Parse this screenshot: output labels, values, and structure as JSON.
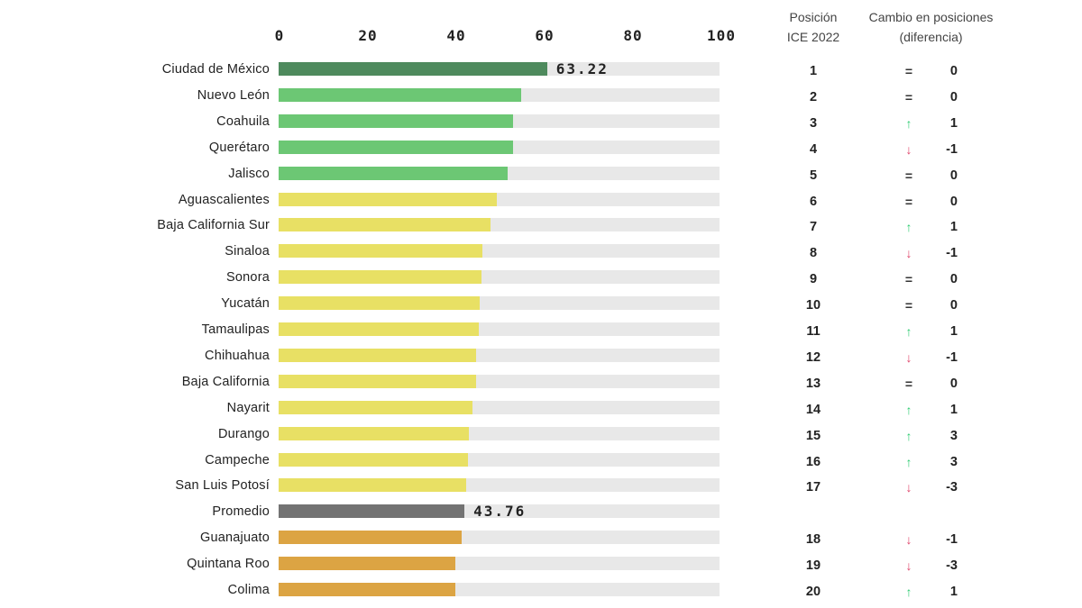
{
  "chart_data": {
    "type": "bar",
    "orientation": "horizontal",
    "xlim": [
      0,
      100
    ],
    "xticks": [
      "0",
      "20",
      "40",
      "60",
      "80",
      "100"
    ],
    "grid": false,
    "columns": {
      "position_header": [
        "Posición",
        "ICE 2022"
      ],
      "change_header": [
        "Cambio en posiciones",
        "(diferencia)"
      ]
    },
    "colors": {
      "top": "#4e8a5d",
      "high": "#6cc774",
      "mid": "#e8e064",
      "average": "#737373",
      "low": "#dca443",
      "track": "#e8e8e8",
      "up": "#2ecc71",
      "down": "#e0456a"
    },
    "rows": [
      {
        "label": "Ciudad de México",
        "value": 63.22,
        "value_label": "63.22",
        "color": "top",
        "position": "1",
        "arrow": "=",
        "change": "0"
      },
      {
        "label": "Nuevo León",
        "value": 57.1,
        "color": "high",
        "position": "2",
        "arrow": "=",
        "change": "0"
      },
      {
        "label": "Coahuila",
        "value": 55.2,
        "color": "high",
        "position": "3",
        "arrow": "up",
        "change": "1"
      },
      {
        "label": "Querétaro",
        "value": 55.1,
        "color": "high",
        "position": "4",
        "arrow": "down",
        "change": "-1"
      },
      {
        "label": "Jalisco",
        "value": 53.9,
        "color": "high",
        "position": "5",
        "arrow": "=",
        "change": "0"
      },
      {
        "label": "Aguascalientes",
        "value": 51.4,
        "color": "mid",
        "position": "6",
        "arrow": "=",
        "change": "0"
      },
      {
        "label": "Baja California Sur",
        "value": 49.9,
        "color": "mid",
        "position": "7",
        "arrow": "up",
        "change": "1"
      },
      {
        "label": "Sinaloa",
        "value": 48.0,
        "color": "mid",
        "position": "8",
        "arrow": "down",
        "change": "-1"
      },
      {
        "label": "Sonora",
        "value": 47.8,
        "color": "mid",
        "position": "9",
        "arrow": "=",
        "change": "0"
      },
      {
        "label": "Yucatán",
        "value": 47.3,
        "color": "mid",
        "position": "10",
        "arrow": "=",
        "change": "0"
      },
      {
        "label": "Tamaulipas",
        "value": 47.1,
        "color": "mid",
        "position": "11",
        "arrow": "up",
        "change": "1"
      },
      {
        "label": "Chihuahua",
        "value": 46.5,
        "color": "mid",
        "position": "12",
        "arrow": "down",
        "change": "-1"
      },
      {
        "label": "Baja California",
        "value": 46.5,
        "color": "mid",
        "position": "13",
        "arrow": "=",
        "change": "0"
      },
      {
        "label": "Nayarit",
        "value": 45.6,
        "color": "mid",
        "position": "14",
        "arrow": "up",
        "change": "1"
      },
      {
        "label": "Durango",
        "value": 44.9,
        "color": "mid",
        "position": "15",
        "arrow": "up",
        "change": "3"
      },
      {
        "label": "Campeche",
        "value": 44.6,
        "color": "mid",
        "position": "16",
        "arrow": "up",
        "change": "3"
      },
      {
        "label": "San Luis Potosí",
        "value": 44.2,
        "color": "mid",
        "position": "17",
        "arrow": "down",
        "change": "-3"
      },
      {
        "label": "Promedio",
        "value": 43.76,
        "value_label": "43.76",
        "color": "average",
        "position": "",
        "arrow": "",
        "change": ""
      },
      {
        "label": "Guanajuato",
        "value": 43.1,
        "color": "low",
        "position": "18",
        "arrow": "down",
        "change": "-1"
      },
      {
        "label": "Quintana Roo",
        "value": 41.6,
        "color": "low",
        "position": "19",
        "arrow": "down",
        "change": "-3"
      },
      {
        "label": "Colima",
        "value": 41.6,
        "color": "low",
        "position": "20",
        "arrow": "up",
        "change": "1"
      }
    ]
  }
}
